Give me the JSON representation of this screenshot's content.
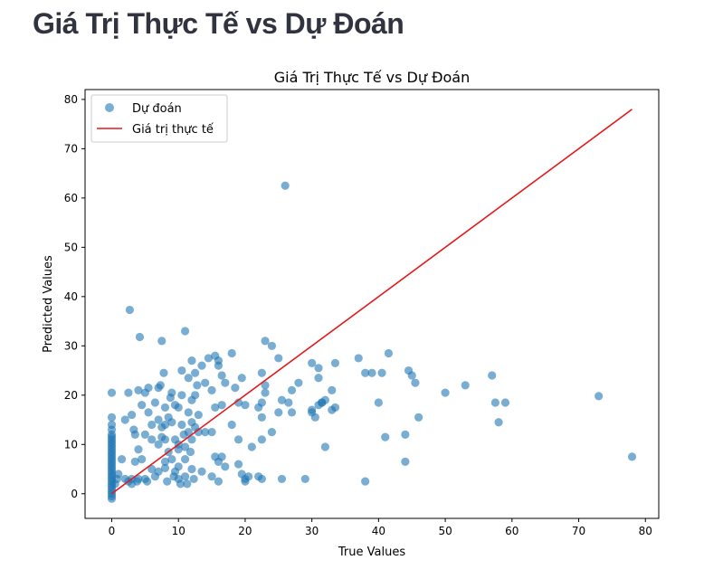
{
  "page": {
    "heading": "Giá Trị Thực Tế vs Dự Đoán"
  },
  "colors": {
    "points": "#1f77b4",
    "line": "#e41a1c",
    "heading": "#31333f"
  },
  "chart_data": {
    "type": "scatter",
    "title": "Giá Trị Thực Tế vs Dự Đoán",
    "xlabel": "True Values",
    "ylabel": "Predicted Values",
    "xlim": [
      -4,
      82
    ],
    "ylim": [
      -5,
      82
    ],
    "xticks": [
      0,
      10,
      20,
      30,
      40,
      50,
      60,
      70,
      80
    ],
    "yticks": [
      0,
      10,
      20,
      30,
      40,
      50,
      60,
      70,
      80
    ],
    "grid": false,
    "legend": {
      "placement": "upper-left",
      "entries": [
        "Dự đoán",
        "Giá trị thực tế"
      ]
    },
    "series": [
      {
        "name": "Dự đoán",
        "kind": "scatter",
        "points": [
          [
            0,
            -1
          ],
          [
            0,
            -0.5
          ],
          [
            0,
            0
          ],
          [
            0,
            0.5
          ],
          [
            0,
            1
          ],
          [
            0,
            1.5
          ],
          [
            0,
            2
          ],
          [
            0,
            2.5
          ],
          [
            0,
            3
          ],
          [
            0,
            3.5
          ],
          [
            0,
            4
          ],
          [
            0,
            4.5
          ],
          [
            0,
            5
          ],
          [
            0,
            5.5
          ],
          [
            0,
            6
          ],
          [
            0,
            6.5
          ],
          [
            0,
            7
          ],
          [
            0,
            7.5
          ],
          [
            0,
            8
          ],
          [
            0,
            8.5
          ],
          [
            0,
            9
          ],
          [
            0,
            9.5
          ],
          [
            0,
            10
          ],
          [
            0,
            10.5
          ],
          [
            0,
            11
          ],
          [
            0,
            11.5
          ],
          [
            0,
            12
          ],
          [
            0,
            13
          ],
          [
            0,
            14
          ],
          [
            0,
            15.5
          ],
          [
            0,
            20.5
          ],
          [
            0.5,
            2
          ],
          [
            0.8,
            3
          ],
          [
            1,
            4
          ],
          [
            1.5,
            7
          ],
          [
            2,
            15
          ],
          [
            2,
            3
          ],
          [
            2.5,
            2.5
          ],
          [
            2.5,
            20.5
          ],
          [
            2.7,
            37.3
          ],
          [
            3,
            16
          ],
          [
            3,
            3
          ],
          [
            3,
            2
          ],
          [
            3.3,
            13
          ],
          [
            3.5,
            12
          ],
          [
            3.5,
            6.5
          ],
          [
            3.8,
            2.5
          ],
          [
            4,
            21
          ],
          [
            4,
            9
          ],
          [
            4,
            3
          ],
          [
            4.2,
            31.8
          ],
          [
            4.5,
            18
          ],
          [
            4.5,
            7
          ],
          [
            5,
            20.5
          ],
          [
            5,
            12
          ],
          [
            5,
            3
          ],
          [
            5.3,
            2.5
          ],
          [
            5.5,
            16.5
          ],
          [
            5.5,
            21.5
          ],
          [
            6,
            14
          ],
          [
            6,
            11
          ],
          [
            6,
            5
          ],
          [
            6.5,
            18.5
          ],
          [
            6.5,
            3.5
          ],
          [
            7,
            21.5
          ],
          [
            7,
            15
          ],
          [
            7,
            10
          ],
          [
            7,
            4.5
          ],
          [
            7.3,
            22
          ],
          [
            7.5,
            31
          ],
          [
            7.5,
            13.5
          ],
          [
            7.5,
            11.5
          ],
          [
            7.8,
            24.5
          ],
          [
            8,
            17.5
          ],
          [
            8,
            14
          ],
          [
            8,
            11
          ],
          [
            8,
            6.5
          ],
          [
            8,
            5.2
          ],
          [
            8.3,
            2.5
          ],
          [
            8.5,
            15.5
          ],
          [
            8.5,
            8.5
          ],
          [
            8.8,
            19.5
          ],
          [
            9,
            20.5
          ],
          [
            9,
            14.5
          ],
          [
            9,
            7
          ],
          [
            9.3,
            3.5
          ],
          [
            9.5,
            18
          ],
          [
            9.5,
            11
          ],
          [
            9.5,
            4.5
          ],
          [
            10,
            17.5
          ],
          [
            10,
            10
          ],
          [
            10,
            9
          ],
          [
            10,
            5.5
          ],
          [
            10,
            3
          ],
          [
            10.3,
            2
          ],
          [
            10.5,
            25
          ],
          [
            10.5,
            20
          ],
          [
            10.5,
            14
          ],
          [
            10.8,
            12
          ],
          [
            11,
            33
          ],
          [
            11,
            9.5
          ],
          [
            11,
            7
          ],
          [
            11,
            3.5
          ],
          [
            11.3,
            2
          ],
          [
            11.5,
            23.5
          ],
          [
            11.5,
            16.5
          ],
          [
            11.5,
            12.5
          ],
          [
            11.8,
            8.5
          ],
          [
            12,
            27
          ],
          [
            12,
            19
          ],
          [
            12,
            14.5
          ],
          [
            12,
            11
          ],
          [
            12,
            5
          ],
          [
            12.3,
            3
          ],
          [
            12.5,
            24.5
          ],
          [
            12.5,
            20
          ],
          [
            12.5,
            13.5
          ],
          [
            12.8,
            22
          ],
          [
            13,
            16
          ],
          [
            13,
            12.5
          ],
          [
            13.5,
            26
          ],
          [
            13.5,
            4.5
          ],
          [
            14,
            22.5
          ],
          [
            14,
            12.5
          ],
          [
            14.5,
            27.5
          ],
          [
            15,
            21
          ],
          [
            15,
            12.5
          ],
          [
            15,
            3.5
          ],
          [
            15.5,
            28
          ],
          [
            15.5,
            17.5
          ],
          [
            15.5,
            7.5
          ],
          [
            16,
            27
          ],
          [
            16,
            26
          ],
          [
            16,
            6.5
          ],
          [
            16,
            2.5
          ],
          [
            16.5,
            24
          ],
          [
            16.5,
            18
          ],
          [
            16.5,
            7.5
          ],
          [
            17,
            22.5
          ],
          [
            17,
            5.5
          ],
          [
            18,
            28.5
          ],
          [
            18,
            14
          ],
          [
            18.5,
            21.5
          ],
          [
            19,
            18.5
          ],
          [
            19,
            11
          ],
          [
            19,
            6
          ],
          [
            19.5,
            23.5
          ],
          [
            19.5,
            4
          ],
          [
            20,
            18
          ],
          [
            20,
            3
          ],
          [
            20,
            2.5
          ],
          [
            20.5,
            3.5
          ],
          [
            21,
            9.5
          ],
          [
            22,
            17.5
          ],
          [
            22,
            3.5
          ],
          [
            22.5,
            24.5
          ],
          [
            22.5,
            18.5
          ],
          [
            22.5,
            15.5
          ],
          [
            22.5,
            11
          ],
          [
            22.5,
            3
          ],
          [
            23,
            31
          ],
          [
            23,
            22
          ],
          [
            23,
            20.5
          ],
          [
            24,
            30
          ],
          [
            24,
            12.5
          ],
          [
            25,
            27.5
          ],
          [
            25,
            16.5
          ],
          [
            25.5,
            19
          ],
          [
            25.5,
            3
          ],
          [
            26,
            62.5
          ],
          [
            26.5,
            18.5
          ],
          [
            27,
            21
          ],
          [
            27,
            16.5
          ],
          [
            28,
            22.5
          ],
          [
            29,
            3
          ],
          [
            30,
            26.5
          ],
          [
            30,
            17
          ],
          [
            30,
            16.5
          ],
          [
            30.5,
            15.5
          ],
          [
            31,
            25.5
          ],
          [
            31,
            23.5
          ],
          [
            31,
            18
          ],
          [
            31.5,
            18.5
          ],
          [
            31.5,
            18.5
          ],
          [
            32,
            19
          ],
          [
            32,
            9.5
          ],
          [
            33,
            17
          ],
          [
            33,
            21
          ],
          [
            33.5,
            26.5
          ],
          [
            33.5,
            17.5
          ],
          [
            37,
            27.5
          ],
          [
            38,
            24.5
          ],
          [
            38,
            2.5
          ],
          [
            39,
            24.5
          ],
          [
            40,
            18.5
          ],
          [
            40.5,
            24.5
          ],
          [
            41,
            11.5
          ],
          [
            41.5,
            28.5
          ],
          [
            44,
            12
          ],
          [
            44,
            6.5
          ],
          [
            44.5,
            25
          ],
          [
            45,
            24
          ],
          [
            45.5,
            22.5
          ],
          [
            46,
            15.5
          ],
          [
            50,
            20.5
          ],
          [
            53,
            22
          ],
          [
            57,
            24
          ],
          [
            57.5,
            18.5
          ],
          [
            58,
            14.5
          ],
          [
            59,
            18.5
          ],
          [
            73,
            19.8
          ],
          [
            78,
            7.5
          ]
        ]
      },
      {
        "name": "Giá trị thực tế",
        "kind": "line",
        "points": [
          [
            0,
            0
          ],
          [
            78,
            78
          ]
        ]
      }
    ]
  }
}
